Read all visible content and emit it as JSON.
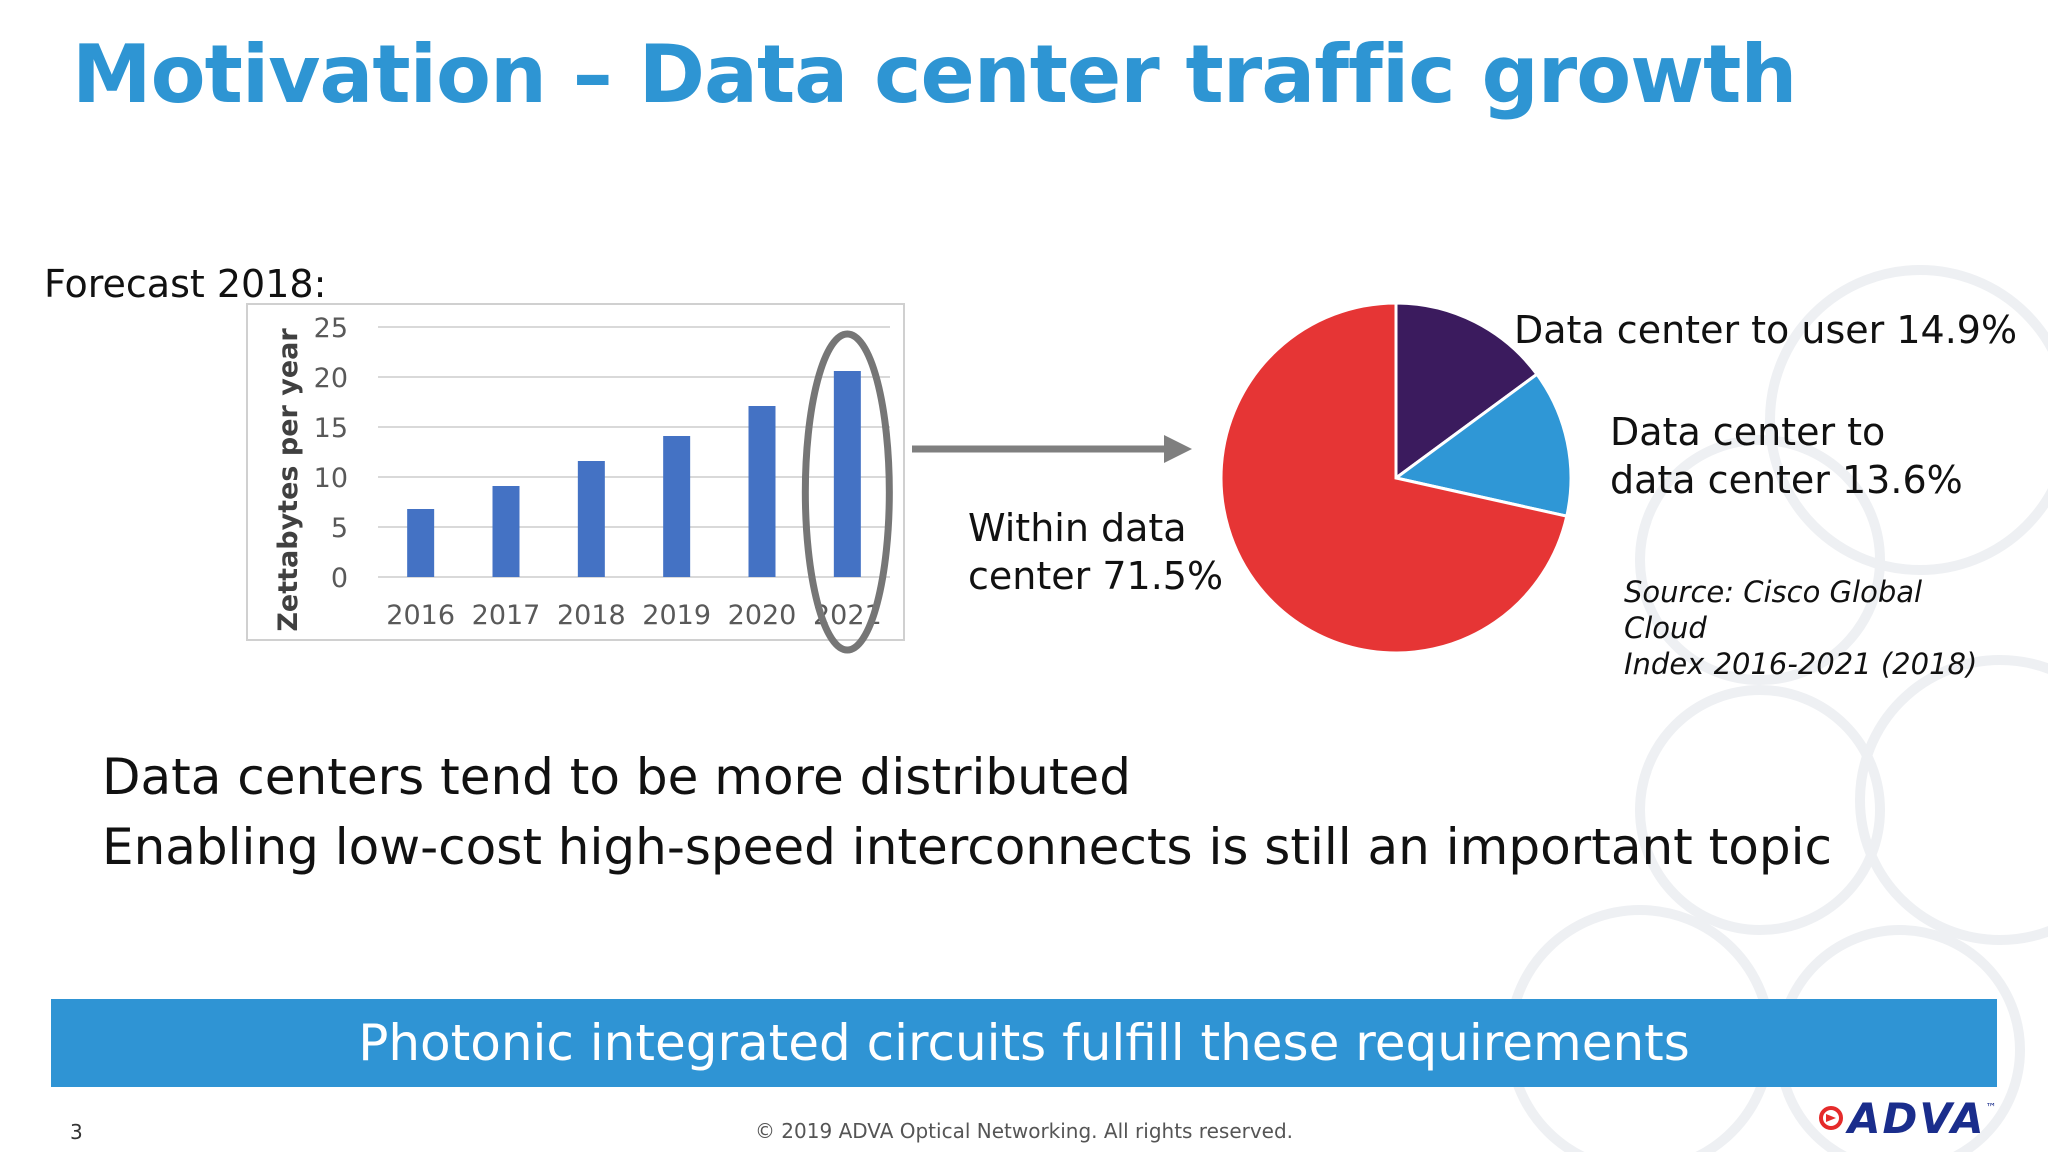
{
  "slide": {
    "title": "Motivation – Data center traffic growth",
    "forecast_label": "Forecast 2018:",
    "bullets": [
      "Data centers tend to be more distributed",
      "Enabling low-cost high-speed interconnects is still an important topic"
    ],
    "source_line1": "Source: Cisco Global Cloud",
    "source_line2": "Index 2016-2021 (2018)",
    "banner": "Photonic integrated circuits fulfill these requirements",
    "page_number": "3",
    "copyright": "© 2019 ADVA Optical Networking. All rights reserved.",
    "logo_text": "ADVA",
    "logo_tm": "™"
  },
  "pie_labels": {
    "within": [
      "Within data",
      "center 71.5%"
    ],
    "dc_to_user": "Data center to user 14.9%",
    "dc_to_dc": [
      "Data center to",
      "data center 13.6%"
    ]
  },
  "colors": {
    "title": "#2e95d3",
    "bar": "#4472c4",
    "banner": "#2f94d4",
    "within": "#e63535",
    "dc_to_user": "#3b1b5e",
    "dc_to_dc": "#2f97d6",
    "highlight_ring": "#767676",
    "arrow": "#7f7f7f",
    "logo": "#1a2d8c",
    "logo_accent": "#e52b2b"
  },
  "chart_data": [
    {
      "type": "bar",
      "categories": [
        "2016",
        "2017",
        "2018",
        "2019",
        "2020",
        "2021"
      ],
      "values": [
        6.8,
        9.1,
        11.6,
        14.1,
        17.1,
        20.6
      ],
      "ylabel": "Zettabytes per year",
      "ylim": [
        0,
        25
      ],
      "yticks": [
        "0",
        "5",
        "10",
        "15",
        "20",
        "25"
      ],
      "grid": true,
      "highlight_category": "2021"
    },
    {
      "type": "pie",
      "labels": [
        "Within data center",
        "Data center to user",
        "Data center to data center"
      ],
      "values": [
        71.5,
        14.9,
        13.6
      ]
    }
  ]
}
